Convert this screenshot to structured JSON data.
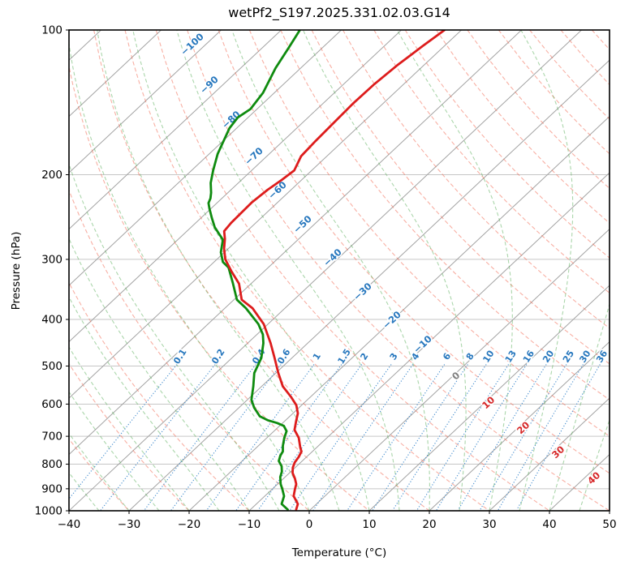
{
  "title": "wetPf2_S197.2025.331.02.03.G14",
  "axes": {
    "x_label": "Temperature (°C)",
    "y_label": "Pressure (hPa)",
    "x_ticks": [
      "−40",
      "−30",
      "−20",
      "−10",
      "0",
      "10",
      "20",
      "30",
      "40",
      "50"
    ],
    "x_tick_values": [
      -40,
      -30,
      -20,
      -10,
      0,
      10,
      20,
      30,
      40,
      50
    ],
    "y_ticks": [
      "100",
      "200",
      "300",
      "400",
      "500",
      "600",
      "700",
      "800",
      "900",
      "1000"
    ],
    "y_tick_values": [
      100,
      200,
      300,
      400,
      500,
      600,
      700,
      800,
      900,
      1000
    ]
  },
  "isotherm_labels": [
    {
      "text": "−100",
      "value": -100,
      "role": "cold"
    },
    {
      "text": "−90",
      "value": -90,
      "role": "cold"
    },
    {
      "text": "−80",
      "value": -80,
      "role": "cold"
    },
    {
      "text": "−70",
      "value": -70,
      "role": "cold"
    },
    {
      "text": "−60",
      "value": -60,
      "role": "cold"
    },
    {
      "text": "−50",
      "value": -50,
      "role": "cold"
    },
    {
      "text": "−40",
      "value": -40,
      "role": "cold"
    },
    {
      "text": "−30",
      "value": -30,
      "role": "cold"
    },
    {
      "text": "−20",
      "value": -20,
      "role": "cold"
    },
    {
      "text": "−10",
      "value": -10,
      "role": "cold"
    },
    {
      "text": "0",
      "value": 0,
      "role": "zero"
    },
    {
      "text": "10",
      "value": 10,
      "role": "warm"
    },
    {
      "text": "20",
      "value": 20,
      "role": "warm"
    },
    {
      "text": "30",
      "value": 30,
      "role": "warm"
    },
    {
      "text": "40",
      "value": 40,
      "role": "warm"
    }
  ],
  "mixing_ratio_labels": [
    "0.1",
    "0.2",
    "0.4",
    "0.6",
    "1",
    "1.5",
    "2",
    "3",
    "4",
    "6",
    "8",
    "10",
    "13",
    "16",
    "20",
    "25",
    "30",
    "36"
  ],
  "colors": {
    "temperature": "#dd1c1c",
    "dewpoint": "#0f8b0f",
    "isotherm": "#a3a3a3",
    "grid": "#c6c6c6",
    "dry_adiabat": "rgba(242,110,88,0.55)",
    "moist_adiabat": "rgba(88,174,88,0.50)",
    "mixing_line": "#4a90d0",
    "cold_label": "#2878be",
    "zero_label": "#7f7f7f",
    "warm_label": "#d62728",
    "spine": "#000000"
  },
  "chart_data": {
    "type": "line",
    "title": "wetPf2_S197.2025.331.02.03.G14",
    "xlabel": "Temperature (°C)",
    "ylabel": "Pressure (hPa)",
    "x_range": [
      -40,
      50
    ],
    "pressure_range": [
      100,
      1000
    ],
    "y_scale": "log",
    "skew_deg": 45,
    "grid": true,
    "legend": "none",
    "mixing_ratio_lines_g_kg": [
      0.1,
      0.2,
      0.4,
      0.6,
      1,
      1.5,
      2,
      3,
      4,
      6,
      8,
      10,
      13,
      16,
      20,
      25,
      30,
      36
    ],
    "dry_adiabats_theta_C_start": -40,
    "dry_adiabats_theta_C_end": 190,
    "dry_adiabats_theta_C_step": 10,
    "moist_adiabats_start_C": [
      -55,
      -50,
      -45,
      -40,
      -35,
      -30,
      -25,
      -20,
      -15,
      -10,
      -5,
      0,
      5,
      10,
      15,
      20,
      25,
      30,
      35,
      40,
      45
    ],
    "series": [
      {
        "name": "temperature",
        "color": "#dd1c1c",
        "points_p_T": [
          [
            100,
            -62.8
          ],
          [
            108,
            -63.6
          ],
          [
            118,
            -64.4
          ],
          [
            130,
            -64.9
          ],
          [
            142,
            -65.0
          ],
          [
            155,
            -64.8
          ],
          [
            170,
            -64.6
          ],
          [
            183,
            -64.3
          ],
          [
            196,
            -62.9
          ],
          [
            205,
            -63.3
          ],
          [
            215,
            -63.9
          ],
          [
            228,
            -64.3
          ],
          [
            240,
            -64.2
          ],
          [
            252,
            -64.1
          ],
          [
            262,
            -63.8
          ],
          [
            272,
            -62.3
          ],
          [
            285,
            -60.7
          ],
          [
            300,
            -58.6
          ],
          [
            318,
            -55.4
          ],
          [
            337,
            -52.0
          ],
          [
            364,
            -48.7
          ],
          [
            379,
            -45.4
          ],
          [
            409,
            -40.7
          ],
          [
            448,
            -36.2
          ],
          [
            481,
            -32.9
          ],
          [
            517,
            -29.6
          ],
          [
            551,
            -26.5
          ],
          [
            580,
            -23.2
          ],
          [
            603,
            -20.9
          ],
          [
            627,
            -19.2
          ],
          [
            653,
            -18.0
          ],
          [
            679,
            -16.8
          ],
          [
            705,
            -14.7
          ],
          [
            739,
            -12.7
          ],
          [
            753,
            -11.8
          ],
          [
            773,
            -11.3
          ],
          [
            793,
            -11.0
          ],
          [
            813,
            -10.4
          ],
          [
            834,
            -9.5
          ],
          [
            857,
            -8.1
          ],
          [
            880,
            -6.9
          ],
          [
            902,
            -6.2
          ],
          [
            932,
            -5.2
          ],
          [
            968,
            -3.1
          ],
          [
            994,
            -2.4
          ]
        ]
      },
      {
        "name": "dewpoint",
        "color": "#0f8b0f",
        "points_p_T": [
          [
            100,
            -86.9
          ],
          [
            109,
            -85.6
          ],
          [
            120,
            -84.2
          ],
          [
            135,
            -81.9
          ],
          [
            146,
            -81.1
          ],
          [
            152,
            -81.7
          ],
          [
            160,
            -81.2
          ],
          [
            167,
            -80.3
          ],
          [
            181,
            -78.6
          ],
          [
            196,
            -76.4
          ],
          [
            208,
            -74.6
          ],
          [
            218,
            -72.8
          ],
          [
            224,
            -71.9
          ],
          [
            229,
            -71.4
          ],
          [
            235,
            -70.3
          ],
          [
            246,
            -68.2
          ],
          [
            257,
            -66.1
          ],
          [
            273,
            -62.5
          ],
          [
            290,
            -60.6
          ],
          [
            304,
            -58.5
          ],
          [
            312,
            -56.6
          ],
          [
            337,
            -53.0
          ],
          [
            364,
            -49.5
          ],
          [
            379,
            -46.5
          ],
          [
            409,
            -41.6
          ],
          [
            430,
            -39.0
          ],
          [
            448,
            -37.4
          ],
          [
            481,
            -35.1
          ],
          [
            517,
            -33.6
          ],
          [
            551,
            -31.4
          ],
          [
            588,
            -29.3
          ],
          [
            610,
            -27.5
          ],
          [
            636,
            -25.0
          ],
          [
            648,
            -23.0
          ],
          [
            657,
            -20.9
          ],
          [
            666,
            -19.3
          ],
          [
            683,
            -17.9
          ],
          [
            705,
            -17.1
          ],
          [
            733,
            -15.9
          ],
          [
            753,
            -14.9
          ],
          [
            768,
            -14.6
          ],
          [
            788,
            -13.9
          ],
          [
            808,
            -12.5
          ],
          [
            829,
            -11.5
          ],
          [
            851,
            -10.8
          ],
          [
            880,
            -9.5
          ],
          [
            902,
            -8.3
          ],
          [
            932,
            -6.8
          ],
          [
            968,
            -5.8
          ],
          [
            994,
            -3.8
          ]
        ]
      }
    ]
  }
}
